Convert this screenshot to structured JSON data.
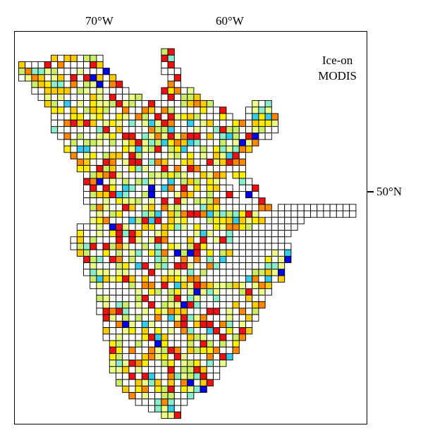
{
  "map": {
    "label_line1": "Ice-on",
    "label_line2": "MODIS",
    "lon_labels": [
      "70°W",
      "60°W"
    ],
    "lat_labels": [
      "50°N"
    ]
  },
  "colors": {
    "empty": "#ffffff",
    "grid_stroke": "#000000",
    "palette": [
      "#0000ee",
      "#33ccee",
      "#88eecc",
      "#ccee66",
      "#eeff88",
      "#ffee00",
      "#ffcc00",
      "#ff8800",
      "#ee1111"
    ]
  }
}
